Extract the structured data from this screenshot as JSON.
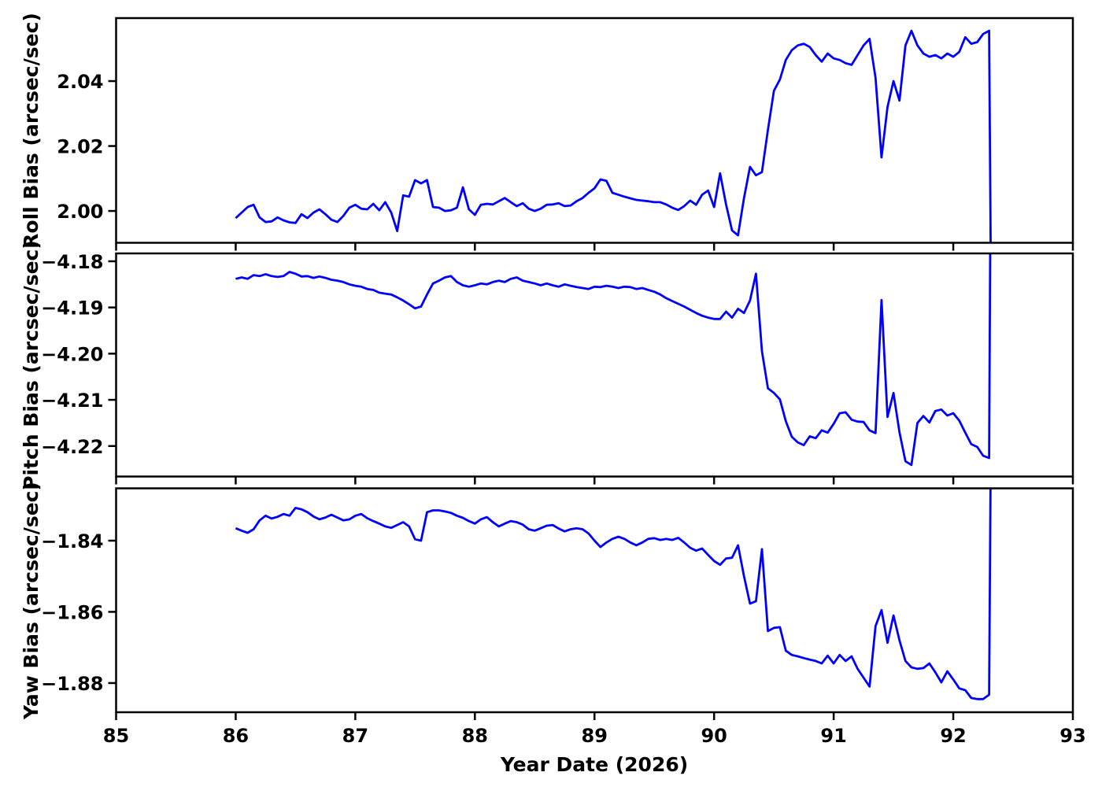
{
  "figure": {
    "background": "#ffffff",
    "frame_color": "#000000"
  },
  "chart_data": {
    "type": "line",
    "title": "",
    "xlabel": "Year Date (2026)",
    "xlim": [
      85,
      93
    ],
    "x_ticks": [
      85,
      86,
      87,
      88,
      89,
      90,
      91,
      92,
      93
    ],
    "x_tick_labels": [
      "85",
      "86",
      "87",
      "88",
      "89",
      "90",
      "91",
      "92",
      "93"
    ],
    "line_color": "#0000ff",
    "grid": false,
    "legend": "none",
    "x": [
      86.0,
      86.05,
      86.1,
      86.15,
      86.2,
      86.25,
      86.3,
      86.35,
      86.4,
      86.45,
      86.5,
      86.55,
      86.6,
      86.65,
      86.7,
      86.75,
      86.8,
      86.85,
      86.9,
      86.95,
      87.0,
      87.05,
      87.1,
      87.15,
      87.2,
      87.25,
      87.3,
      87.35,
      87.4,
      87.45,
      87.5,
      87.55,
      87.6,
      87.65,
      87.7,
      87.75,
      87.8,
      87.85,
      87.9,
      87.95,
      88.0,
      88.05,
      88.1,
      88.15,
      88.2,
      88.25,
      88.3,
      88.35,
      88.4,
      88.45,
      88.5,
      88.55,
      88.6,
      88.65,
      88.7,
      88.75,
      88.8,
      88.85,
      88.9,
      88.95,
      89.0,
      89.05,
      89.1,
      89.15,
      89.2,
      89.25,
      89.3,
      89.35,
      89.4,
      89.45,
      89.5,
      89.55,
      89.6,
      89.65,
      89.7,
      89.75,
      89.8,
      89.85,
      89.9,
      89.95,
      90.0,
      90.05,
      90.1,
      90.15,
      90.2,
      90.25,
      90.3,
      90.35,
      90.4,
      90.45,
      90.5,
      90.55,
      90.6,
      90.65,
      90.7,
      90.75,
      90.8,
      90.85,
      90.9,
      90.95,
      91.0,
      91.05,
      91.1,
      91.15,
      91.2,
      91.25,
      91.3,
      91.35,
      91.4,
      91.45,
      91.5,
      91.55,
      91.6,
      91.65,
      91.7,
      91.75,
      91.8,
      91.85,
      91.9,
      91.95,
      92.0,
      92.05,
      92.1,
      92.15,
      92.2,
      92.25,
      92.3,
      92.32
    ],
    "panels": [
      {
        "ylabel": "Roll Bias (arcsec/sec)",
        "ylim": [
          1.9902,
          2.0594
        ],
        "y_ticks": [
          2.0,
          2.02,
          2.04
        ],
        "y_tick_labels": [
          "2.00",
          "2.02",
          "2.04"
        ],
        "values": [
          1.9978,
          1.9995,
          2.0012,
          2.0019,
          1.998,
          1.9966,
          1.9968,
          1.998,
          1.9971,
          1.9965,
          1.9963,
          1.999,
          1.9978,
          1.9995,
          2.0005,
          1.999,
          1.9973,
          1.9966,
          1.9985,
          2.001,
          2.0019,
          2.0007,
          2.0005,
          2.0022,
          2.0002,
          2.0027,
          1.9995,
          1.9938,
          2.0048,
          2.0044,
          2.0095,
          2.0085,
          2.0095,
          2.0012,
          2.001,
          2.0,
          2.0002,
          2.001,
          2.0073,
          2.0005,
          1.9988,
          2.0019,
          2.0022,
          2.002,
          2.003,
          2.004,
          2.0027,
          2.0015,
          2.0024,
          2.0007,
          2.0,
          2.0007,
          2.0019,
          2.002,
          2.0024,
          2.0015,
          2.0017,
          2.003,
          2.004,
          2.0056,
          2.007,
          2.0097,
          2.0093,
          2.0056,
          2.005,
          2.0044,
          2.0039,
          2.0034,
          2.0032,
          2.003,
          2.0027,
          2.0027,
          2.002,
          2.001,
          2.0003,
          2.0015,
          2.0032,
          2.0019,
          2.005,
          2.0063,
          2.0012,
          2.0116,
          2.002,
          1.994,
          1.9925,
          2.004,
          2.0136,
          2.011,
          2.012,
          2.025,
          2.037,
          2.0405,
          2.0465,
          2.0495,
          2.051,
          2.0515,
          2.0505,
          2.048,
          2.046,
          2.0485,
          2.047,
          2.0465,
          2.0455,
          2.045,
          2.048,
          2.051,
          2.053,
          2.041,
          2.0165,
          2.032,
          2.04,
          2.034,
          2.051,
          2.0555,
          2.051,
          2.0485,
          2.0475,
          2.048,
          2.047,
          2.0485,
          2.0475,
          2.049,
          2.0535,
          2.0515,
          2.052,
          2.0545,
          2.0555,
          1.95
        ]
      },
      {
        "ylabel": "Pitch Bias (arcsec/sec)",
        "ylim": [
          -4.2266,
          -4.1783
        ],
        "y_ticks": [
          -4.18,
          -4.19,
          -4.2,
          -4.21,
          -4.22
        ],
        "y_tick_labels": [
          "−4.18",
          "−4.19",
          "−4.20",
          "−4.21",
          "−4.22"
        ],
        "values": [
          -4.1838,
          -4.1835,
          -4.1838,
          -4.183,
          -4.1832,
          -4.1828,
          -4.1832,
          -4.1834,
          -4.1832,
          -4.1823,
          -4.1827,
          -4.1833,
          -4.1832,
          -4.1836,
          -4.1833,
          -4.1836,
          -4.184,
          -4.1842,
          -4.1845,
          -4.185,
          -4.1853,
          -4.1855,
          -4.186,
          -4.1862,
          -4.1868,
          -4.187,
          -4.1872,
          -4.1878,
          -4.1885,
          -4.1893,
          -4.1902,
          -4.1898,
          -4.1872,
          -4.1848,
          -4.1842,
          -4.1835,
          -4.1832,
          -4.1845,
          -4.1852,
          -4.1855,
          -4.1852,
          -4.1848,
          -4.185,
          -4.1845,
          -4.1842,
          -4.1845,
          -4.1838,
          -4.1835,
          -4.1842,
          -4.1845,
          -4.1848,
          -4.1852,
          -4.1848,
          -4.1852,
          -4.1855,
          -4.185,
          -4.1853,
          -4.1856,
          -4.1858,
          -4.186,
          -4.1855,
          -4.1856,
          -4.1853,
          -4.1855,
          -4.1858,
          -4.1855,
          -4.1856,
          -4.186,
          -4.1858,
          -4.1862,
          -4.1866,
          -4.1872,
          -4.188,
          -4.1886,
          -4.1892,
          -4.1898,
          -4.1905,
          -4.1912,
          -4.1918,
          -4.1922,
          -4.1925,
          -4.1925,
          -4.1909,
          -4.1922,
          -4.1903,
          -4.1912,
          -4.1885,
          -4.1827,
          -4.1995,
          -4.2075,
          -4.2085,
          -4.2099,
          -4.2146,
          -4.218,
          -4.2192,
          -4.2198,
          -4.2179,
          -4.2183,
          -4.2166,
          -4.2171,
          -4.2152,
          -4.2129,
          -4.2127,
          -4.2143,
          -4.2147,
          -4.2148,
          -4.2166,
          -4.2172,
          -4.1884,
          -4.2137,
          -4.2085,
          -4.217,
          -4.2233,
          -4.2241,
          -4.215,
          -4.2135,
          -4.2149,
          -4.2124,
          -4.2121,
          -4.2134,
          -4.2129,
          -4.2145,
          -4.2171,
          -4.2196,
          -4.2202,
          -4.2221,
          -4.2226,
          -4.12
        ]
      },
      {
        "ylabel": "Yaw Bias (arcsec/sec)",
        "ylim": [
          -1.8882,
          -1.8253
        ],
        "y_ticks": [
          -1.84,
          -1.86,
          -1.88
        ],
        "y_tick_labels": [
          "−1.84",
          "−1.86",
          "−1.88"
        ],
        "values": [
          -1.8365,
          -1.8372,
          -1.8378,
          -1.8368,
          -1.8343,
          -1.833,
          -1.8338,
          -1.8333,
          -1.8325,
          -1.833,
          -1.8308,
          -1.8312,
          -1.832,
          -1.8332,
          -1.834,
          -1.8335,
          -1.8327,
          -1.8335,
          -1.8343,
          -1.834,
          -1.833,
          -1.8325,
          -1.8337,
          -1.8345,
          -1.8352,
          -1.836,
          -1.8364,
          -1.8356,
          -1.8348,
          -1.836,
          -1.8396,
          -1.84,
          -1.832,
          -1.8315,
          -1.8315,
          -1.8318,
          -1.8322,
          -1.833,
          -1.8336,
          -1.8345,
          -1.8352,
          -1.834,
          -1.8334,
          -1.8348,
          -1.836,
          -1.8352,
          -1.8345,
          -1.8348,
          -1.8355,
          -1.8368,
          -1.8372,
          -1.8365,
          -1.8358,
          -1.8356,
          -1.8366,
          -1.8374,
          -1.8368,
          -1.8365,
          -1.8368,
          -1.838,
          -1.84,
          -1.8418,
          -1.8405,
          -1.8395,
          -1.8389,
          -1.8395,
          -1.8405,
          -1.8413,
          -1.8405,
          -1.8395,
          -1.8393,
          -1.8398,
          -1.8395,
          -1.8398,
          -1.8392,
          -1.8405,
          -1.842,
          -1.8428,
          -1.8422,
          -1.844,
          -1.8457,
          -1.8468,
          -1.845,
          -1.8448,
          -1.8413,
          -1.85,
          -1.8577,
          -1.857,
          -1.8424,
          -1.8654,
          -1.8645,
          -1.8643,
          -1.8709,
          -1.8721,
          -1.8725,
          -1.873,
          -1.8734,
          -1.8738,
          -1.8745,
          -1.8723,
          -1.8745,
          -1.8721,
          -1.8738,
          -1.8725,
          -1.876,
          -1.8785,
          -1.881,
          -1.864,
          -1.8595,
          -1.8687,
          -1.861,
          -1.868,
          -1.8738,
          -1.8756,
          -1.876,
          -1.8758,
          -1.8745,
          -1.877,
          -1.8798,
          -1.8767,
          -1.879,
          -1.8815,
          -1.882,
          -1.8842,
          -1.8845,
          -1.8845,
          -1.8833,
          -1.78
        ]
      }
    ]
  }
}
